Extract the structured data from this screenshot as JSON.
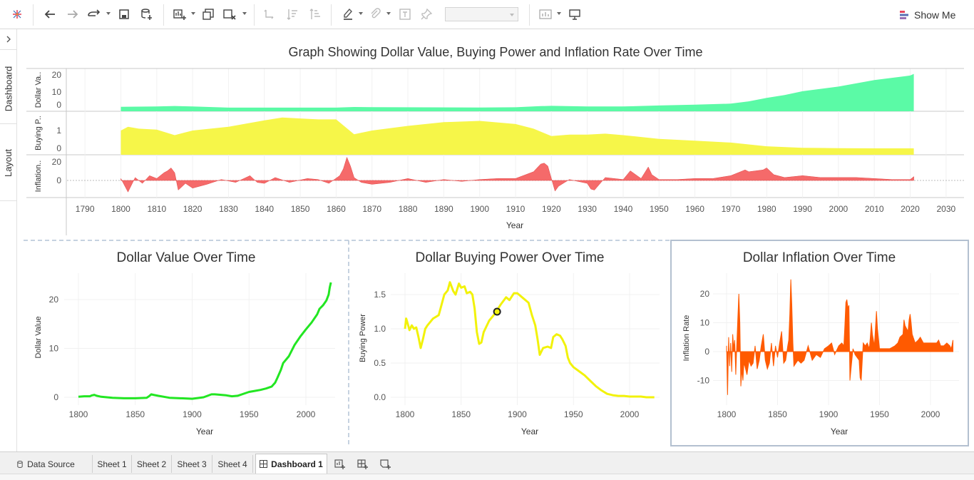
{
  "toolbar": {
    "show_me_label": "Show Me"
  },
  "sidebar": {
    "tabs": [
      {
        "label": "Dashboard"
      },
      {
        "label": "Layout"
      }
    ]
  },
  "bottom_tabs": {
    "data_source": "Data Source",
    "sheets": [
      "Sheet 1",
      "Sheet 2",
      "Sheet 3",
      "Sheet 4"
    ],
    "dashboard": "Dashboard 1"
  },
  "colors": {
    "dollar_value": "#5bfaa6",
    "buying_power": "#f6f649",
    "inflation": "#f56a6a",
    "line_green": "#22e622",
    "line_yellow": "#f2f20a",
    "line_orange": "#ff5a00",
    "tableau_accent": "#e8475f"
  },
  "chart_data": [
    {
      "type": "area",
      "title": "Graph Showing Dollar Value, Buying Power and Inflation Rate Over Time",
      "xlabel": "Year",
      "x_ticks": [
        "1790",
        "1800",
        "1810",
        "1820",
        "1830",
        "1840",
        "1850",
        "1860",
        "1870",
        "1880",
        "1890",
        "1900",
        "1910",
        "1920",
        "1930",
        "1940",
        "1950",
        "1960",
        "1970",
        "1980",
        "1990",
        "2000",
        "2010",
        "2020",
        "2030"
      ],
      "xlim": [
        1785,
        2035
      ],
      "panes": [
        {
          "name": "Dollar Va..",
          "yticks": [
            "20",
            "10",
            "0"
          ],
          "ylim": [
            0,
            24
          ],
          "x": [
            1800,
            1810,
            1815,
            1820,
            1830,
            1860,
            1865,
            1870,
            1900,
            1910,
            1917,
            1920,
            1930,
            1940,
            1950,
            1960,
            1970,
            1975,
            1980,
            1985,
            1990,
            2000,
            2010,
            2020,
            2021
          ],
          "values": [
            1.0,
            1.2,
            1.5,
            1.2,
            0.5,
            0.5,
            0.9,
            0.8,
            0.6,
            0.7,
            1.4,
            1.6,
            1.2,
            1.2,
            1.8,
            2.3,
            3.0,
            4.4,
            6.6,
            8.3,
            10.7,
            13.6,
            17.7,
            20.5,
            21.5
          ]
        },
        {
          "name": "Buying P..",
          "yticks": [
            "1",
            "0"
          ],
          "ylim": [
            0,
            1.75
          ],
          "x": [
            1800,
            1802,
            1805,
            1810,
            1815,
            1820,
            1830,
            1840,
            1845,
            1850,
            1855,
            1860,
            1865,
            1870,
            1880,
            1890,
            1900,
            1910,
            1915,
            1920,
            1925,
            1930,
            1935,
            1940,
            1950,
            1960,
            1970,
            1980,
            1990,
            2000,
            2010,
            2021
          ],
          "values": [
            1.0,
            1.2,
            1.1,
            1.05,
            0.75,
            1.0,
            1.2,
            1.55,
            1.7,
            1.65,
            1.6,
            1.6,
            0.8,
            1.0,
            1.25,
            1.45,
            1.52,
            1.35,
            1.1,
            0.7,
            0.78,
            0.78,
            0.83,
            0.75,
            0.55,
            0.45,
            0.35,
            0.15,
            0.07,
            0.05,
            0.04,
            0.04
          ]
        },
        {
          "name": "Inflation..",
          "yticks": [
            "20",
            "0"
          ],
          "ylim": [
            -16,
            25
          ],
          "x": [
            1800,
            1802,
            1804,
            1806,
            1808,
            1810,
            1812,
            1813,
            1814,
            1815,
            1816,
            1818,
            1820,
            1824,
            1828,
            1832,
            1836,
            1838,
            1840,
            1843,
            1847,
            1852,
            1855,
            1858,
            1861,
            1862,
            1863,
            1864,
            1865,
            1867,
            1870,
            1875,
            1880,
            1885,
            1890,
            1895,
            1900,
            1905,
            1910,
            1915,
            1917,
            1918,
            1919,
            1920,
            1921,
            1922,
            1925,
            1930,
            1931,
            1932,
            1935,
            1940,
            1942,
            1945,
            1946,
            1947,
            1948,
            1950,
            1955,
            1960,
            1965,
            1970,
            1974,
            1975,
            1979,
            1980,
            1982,
            1985,
            1990,
            1995,
            2000,
            2005,
            2010,
            2015,
            2020,
            2021
          ],
          "values": [
            2,
            -12,
            3,
            -3,
            5,
            2,
            8,
            10,
            13,
            8,
            -10,
            -3,
            -8,
            -4,
            1,
            -2,
            5,
            -2,
            -3,
            3,
            -2,
            2,
            1,
            -3,
            5,
            12,
            24,
            15,
            3,
            -2,
            -4,
            -2,
            2,
            -2,
            1,
            -1,
            1,
            2,
            2,
            9,
            17,
            18,
            15,
            2,
            -11,
            -6,
            1,
            -3,
            -9,
            -10,
            3,
            1,
            10,
            2,
            8,
            14,
            6,
            1,
            1,
            2,
            2,
            5,
            11,
            9,
            11,
            13,
            6,
            3,
            5,
            3,
            3,
            3,
            2,
            1,
            1,
            4
          ]
        }
      ]
    },
    {
      "type": "line",
      "title": "Dollar Value Over Time",
      "xlabel": "Year",
      "ylabel": "Dollar Value",
      "x_ticks": [
        "1800",
        "1850",
        "1900",
        "1950",
        "2000"
      ],
      "y_ticks": [
        "20",
        "10",
        "0"
      ],
      "xlim": [
        1790,
        2026
      ],
      "ylim": [
        -1.5,
        25
      ],
      "x": [
        1800,
        1805,
        1810,
        1812,
        1814,
        1816,
        1820,
        1830,
        1840,
        1850,
        1860,
        1862,
        1864,
        1866,
        1870,
        1880,
        1900,
        1910,
        1917,
        1920,
        1930,
        1935,
        1940,
        1950,
        1955,
        1960,
        1965,
        1970,
        1973,
        1975,
        1978,
        1980,
        1985,
        1990,
        1995,
        2000,
        2005,
        2010,
        2012,
        2015,
        2018,
        2020,
        2021,
        2022
      ],
      "values": [
        0.1,
        0.2,
        0.2,
        0.4,
        0.5,
        0.3,
        0.1,
        -0.1,
        -0.2,
        -0.2,
        -0.1,
        0.2,
        0.6,
        0.5,
        0.3,
        -0.1,
        -0.3,
        0.0,
        0.6,
        0.6,
        0.4,
        0.2,
        0.3,
        1.1,
        1.3,
        1.5,
        1.8,
        2.2,
        3.0,
        4.0,
        5.6,
        7.0,
        8.4,
        10.7,
        12.4,
        13.9,
        15.3,
        17.0,
        18.1,
        18.8,
        19.8,
        21.0,
        22.5,
        23.5
      ]
    },
    {
      "type": "line",
      "title": "Dollar Buying Power Over Time",
      "xlabel": "Year",
      "ylabel": "Buying Power",
      "x_ticks": [
        "1800",
        "1850",
        "1900",
        "1950",
        "2000"
      ],
      "y_ticks": [
        "1.5",
        "1.0",
        "0.5",
        "0.0"
      ],
      "xlim": [
        1790,
        2026
      ],
      "ylim": [
        -0.05,
        1.75
      ],
      "x": [
        1800,
        1801,
        1802,
        1804,
        1806,
        1808,
        1810,
        1812,
        1814,
        1816,
        1818,
        1820,
        1825,
        1830,
        1833,
        1835,
        1838,
        1840,
        1843,
        1845,
        1848,
        1850,
        1853,
        1855,
        1858,
        1860,
        1862,
        1864,
        1866,
        1868,
        1870,
        1875,
        1880,
        1885,
        1890,
        1893,
        1897,
        1900,
        1905,
        1910,
        1913,
        1916,
        1918,
        1920,
        1923,
        1927,
        1930,
        1932,
        1935,
        1938,
        1940,
        1943,
        1945,
        1947,
        1950,
        1955,
        1960,
        1965,
        1970,
        1975,
        1980,
        1985,
        1990,
        1995,
        2000,
        2005,
        2010,
        2015,
        2020,
        2022
      ],
      "values": [
        1.0,
        1.15,
        1.1,
        0.98,
        1.05,
        1.0,
        1.02,
        0.88,
        0.72,
        0.85,
        1.0,
        1.05,
        1.15,
        1.2,
        1.38,
        1.5,
        1.56,
        1.68,
        1.55,
        1.5,
        1.66,
        1.6,
        1.62,
        1.52,
        1.54,
        1.5,
        1.3,
        0.95,
        0.78,
        0.8,
        0.95,
        1.12,
        1.22,
        1.35,
        1.46,
        1.42,
        1.52,
        1.52,
        1.45,
        1.38,
        1.2,
        1.05,
        0.85,
        0.62,
        0.72,
        0.74,
        0.72,
        0.88,
        0.92,
        0.9,
        0.85,
        0.75,
        0.58,
        0.5,
        0.44,
        0.38,
        0.32,
        0.24,
        0.16,
        0.1,
        0.05,
        0.03,
        0.02,
        0.02,
        0.01,
        0.01,
        0.01,
        0.0,
        0.0,
        0.0
      ]
    },
    {
      "type": "area",
      "title": "Dollar Inflation Over Time",
      "xlabel": "Year",
      "ylabel": "Inflation Rate",
      "x_ticks": [
        "1800",
        "1850",
        "1900",
        "1950",
        "2000"
      ],
      "y_ticks": [
        "20",
        "10",
        "0",
        "-10"
      ],
      "xlim": [
        1790,
        2026
      ],
      "ylim": [
        -16,
        26
      ],
      "x": [
        1800,
        1801,
        1802,
        1803,
        1804,
        1805,
        1806,
        1807,
        1808,
        1809,
        1810,
        1811,
        1812,
        1813,
        1814,
        1815,
        1816,
        1817,
        1818,
        1820,
        1822,
        1824,
        1826,
        1828,
        1830,
        1832,
        1834,
        1836,
        1838,
        1840,
        1842,
        1844,
        1846,
        1848,
        1850,
        1852,
        1854,
        1856,
        1858,
        1860,
        1861,
        1862,
        1863,
        1864,
        1865,
        1866,
        1868,
        1870,
        1873,
        1876,
        1880,
        1884,
        1888,
        1892,
        1896,
        1900,
        1903,
        1906,
        1910,
        1913,
        1915,
        1916,
        1917,
        1918,
        1919,
        1920,
        1921,
        1922,
        1924,
        1926,
        1930,
        1931,
        1932,
        1934,
        1936,
        1938,
        1940,
        1941,
        1942,
        1943,
        1945,
        1946,
        1947,
        1948,
        1950,
        1955,
        1960,
        1965,
        1968,
        1970,
        1973,
        1974,
        1975,
        1978,
        1979,
        1980,
        1981,
        1982,
        1985,
        1988,
        1990,
        1993,
        1996,
        2000,
        2003,
        2006,
        2008,
        2010,
        2013,
        2016,
        2019,
        2020,
        2021,
        2022
      ],
      "values": [
        2,
        -15,
        5,
        -5,
        3,
        -7,
        6,
        1,
        4,
        -8,
        2,
        11,
        20,
        10,
        -12,
        -6,
        -10,
        -4,
        -5,
        -8,
        -3,
        -5,
        -4,
        2,
        -6,
        -3,
        2,
        6,
        -3,
        -6,
        -4,
        3,
        -5,
        2,
        -2,
        3,
        7,
        -4,
        -3,
        2,
        4,
        13,
        25,
        16,
        3,
        -5,
        -4,
        -3,
        -4,
        -3,
        2,
        -3,
        -1,
        -2,
        1,
        2,
        3,
        -1,
        2,
        3,
        2,
        9,
        17,
        18,
        15,
        16,
        -10,
        -6,
        1,
        -1,
        -3,
        -9,
        -10,
        3,
        2,
        3,
        1,
        5,
        10,
        6,
        2,
        8,
        14,
        8,
        1,
        1,
        1,
        2,
        3,
        5,
        6,
        11,
        9,
        7,
        11,
        13,
        10,
        6,
        3,
        4,
        5,
        3,
        3,
        3,
        3,
        3,
        4,
        2,
        2,
        3,
        2,
        1,
        2,
        4
      ]
    }
  ]
}
